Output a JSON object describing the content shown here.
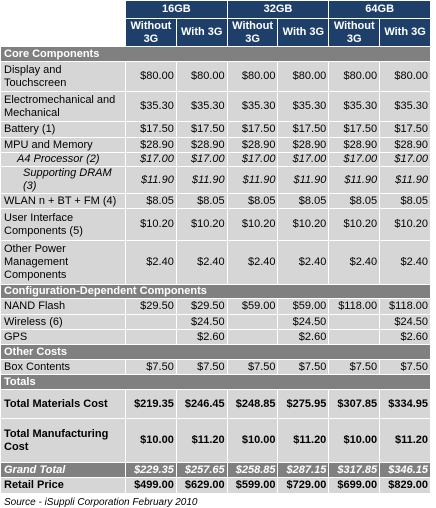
{
  "header": {
    "groups": [
      "16GB",
      "32GB",
      "64GB"
    ],
    "subheaders": [
      "Without 3G",
      "With 3G",
      "Without 3G",
      "With 3G",
      "Without 3G",
      "With 3G"
    ]
  },
  "table": {
    "rows": [
      [
        "Core Components"
      ],
      [
        "Display and Touchscreen",
        "$80.00",
        "$80.00",
        "$80.00",
        "$80.00",
        "$80.00",
        "$80.00"
      ],
      [
        "Electromechanical and Mechanical",
        "$35.30",
        "$35.30",
        "$35.30",
        "$35.30",
        "$35.30",
        "$35.30"
      ],
      [
        "Battery (1)",
        "$17.50",
        "$17.50",
        "$17.50",
        "$17.50",
        "$17.50",
        "$17.50"
      ],
      [
        "MPU and Memory",
        "$28.90",
        "$28.90",
        "$28.90",
        "$28.90",
        "$28.90",
        "$28.90"
      ],
      [
        "A4 Processor (2)",
        "$17.00",
        "$17.00",
        "$17.00",
        "$17.00",
        "$17.00",
        "$17.00"
      ],
      [
        "Supporting DRAM (3)",
        "$11.90",
        "$11.90",
        "$11.90",
        "$11.90",
        "$11.90",
        "$11.90"
      ],
      [
        "WLAN n + BT + FM (4)",
        "$8.05",
        "$8.05",
        "$8.05",
        "$8.05",
        "$8.05",
        "$8.05"
      ],
      [
        "User Interface Components (5)",
        "$10.20",
        "$10.20",
        "$10.20",
        "$10.20",
        "$10.20",
        "$10.20"
      ],
      [
        "Other Power Management Components",
        "$2.40",
        "$2.40",
        "$2.40",
        "$2.40",
        "$2.40",
        "$2.40"
      ],
      [
        "Configuration-Dependent Components"
      ],
      [
        "NAND Flash",
        "$29.50",
        "$29.50",
        "$59.00",
        "$59.00",
        "$118.00",
        "$118.00"
      ],
      [
        "Wireless (6)",
        null,
        "$24.50",
        null,
        "$24.50",
        null,
        "$24.50"
      ],
      [
        "GPS",
        null,
        "$2.60",
        null,
        "$2.60",
        null,
        "$2.60"
      ],
      [
        "Other Costs"
      ],
      [
        "Box Contents",
        "$7.50",
        "$7.50",
        "$7.50",
        "$7.50",
        "$7.50",
        "$7.50"
      ],
      [
        "Totals"
      ],
      [
        "Total Materials Cost",
        "$219.35",
        "$246.45",
        "$248.85",
        "$275.95",
        "$307.85",
        "$334.95"
      ],
      [
        "Total Manufacturing Cost",
        "$10.00",
        "$11.20",
        "$10.00",
        "$11.20",
        "$10.00",
        "$11.20"
      ],
      [
        "Grand Total",
        "$229.35",
        "$257.65",
        "$258.85",
        "$287.15",
        "$317.85",
        "$346.15"
      ],
      [
        "Retail Price",
        "$499.00",
        "$629.00",
        "$599.00",
        "$729.00",
        "$699.00",
        "$829.00"
      ]
    ]
  },
  "source": "Source - iSuppli Corporation February 2010"
}
